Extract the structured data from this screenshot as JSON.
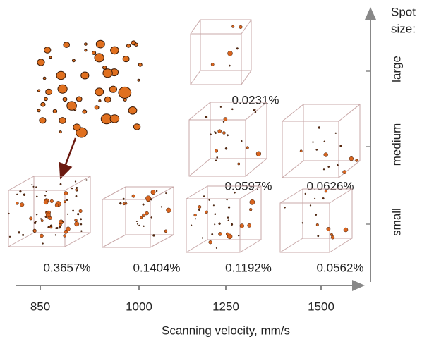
{
  "x_axis": {
    "label": "Scanning velocity, mm/s",
    "ticks": [
      "850",
      "1000",
      "1250",
      "1500"
    ]
  },
  "spot_size": {
    "title_lines": [
      "Spot",
      "size:"
    ],
    "levels": [
      "large",
      "medium",
      "small"
    ]
  },
  "panels": [
    {
      "velocity": "1250",
      "spot_size": "large",
      "porosity": "0.0231%"
    },
    {
      "velocity": "1250",
      "spot_size": "medium",
      "porosity": "0.0597%"
    },
    {
      "velocity": "1500",
      "spot_size": "medium",
      "porosity": "0.0626%"
    },
    {
      "velocity": "850",
      "spot_size": "small",
      "porosity": "0.3657%"
    },
    {
      "velocity": "1000",
      "spot_size": "small",
      "porosity": "0.1404%"
    },
    {
      "velocity": "1250",
      "spot_size": "small",
      "porosity": "0.1192%"
    },
    {
      "velocity": "1500",
      "spot_size": "small",
      "porosity": "0.0562%"
    }
  ]
}
